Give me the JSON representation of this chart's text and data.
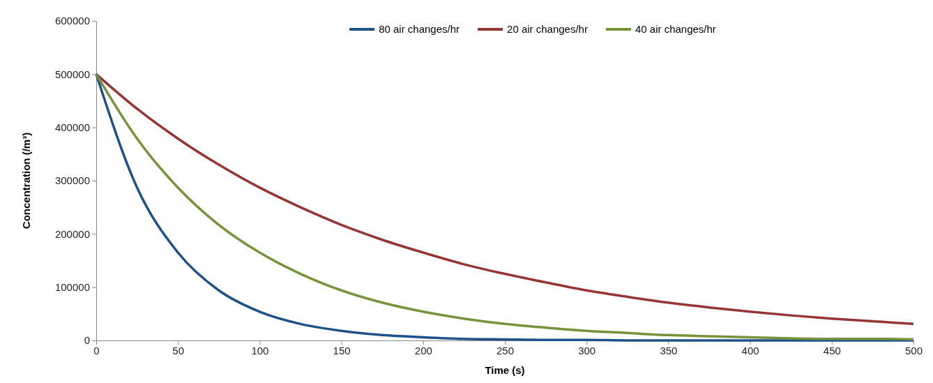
{
  "chart_data": {
    "type": "line",
    "xlabel": "Time (s)",
    "ylabel": "Concentration (/m³)",
    "x": [
      0,
      25,
      50,
      75,
      100,
      125,
      150,
      175,
      200,
      225,
      250,
      275,
      300,
      325,
      350,
      375,
      400,
      425,
      450,
      475,
      500
    ],
    "xlim": [
      0,
      500
    ],
    "xticks": [
      0,
      50,
      100,
      150,
      200,
      250,
      300,
      350,
      400,
      450,
      500
    ],
    "ylim": [
      0,
      600000
    ],
    "yticks": [
      0,
      100000,
      200000,
      300000,
      400000,
      500000,
      600000
    ],
    "grid": false,
    "legend": "top",
    "marker": "none",
    "line_style": "solid",
    "series": [
      {
        "name": "80 air changes/hr",
        "color": "#1f5189",
        "values": [
          500000,
          287000,
          165000,
          94000,
          54000,
          31000,
          18000,
          10000,
          6000,
          3000,
          2000,
          1000,
          1000,
          0,
          0,
          0,
          0,
          0,
          0,
          0,
          0
        ]
      },
      {
        "name": "20 air changes/hr",
        "color": "#943634",
        "values": [
          500000,
          435000,
          379000,
          330000,
          287000,
          250000,
          217000,
          189000,
          165000,
          143000,
          125000,
          109000,
          94000,
          82000,
          71000,
          62000,
          54000,
          47000,
          41000,
          36000,
          31000
        ]
      },
      {
        "name": "40 air changes/hr",
        "color": "#76933c",
        "values": [
          500000,
          379000,
          287000,
          217000,
          165000,
          125000,
          94000,
          71000,
          54000,
          41000,
          31000,
          24000,
          18000,
          14000,
          10000,
          8000,
          6000,
          4000,
          3000,
          3000,
          2000
        ]
      }
    ]
  }
}
